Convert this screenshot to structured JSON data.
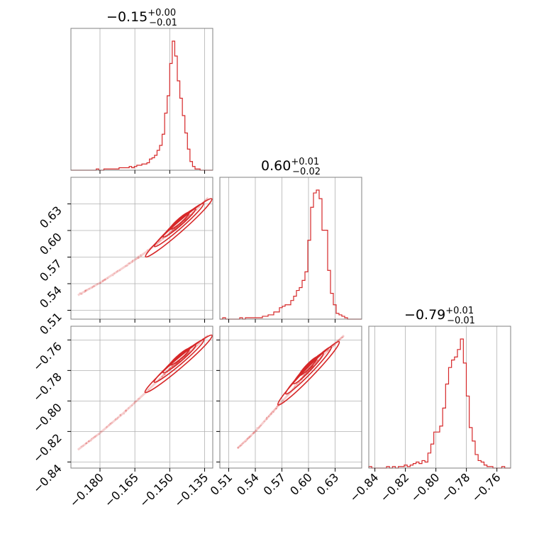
{
  "chart_data": {
    "type": "corner",
    "color": "#d62728",
    "parameters": [
      {
        "title_value": "−0.15",
        "title_plus": "+0.00",
        "title_minus": "−0.01",
        "range": [
          -0.1925,
          -0.1315
        ],
        "ticks": [
          -0.18,
          -0.165,
          -0.15,
          -0.135
        ],
        "tick_labels": [
          "−0.180",
          "−0.165",
          "−0.150",
          "−0.135"
        ],
        "histogram": {
          "bin_edges_range": [
            -0.1925,
            -0.1315
          ],
          "counts": [
            0,
            0,
            0,
            0,
            0,
            0,
            0,
            0,
            0,
            0,
            1,
            0,
            0,
            1,
            1,
            1,
            1,
            1,
            1,
            2,
            2,
            2,
            2,
            3,
            2,
            3,
            4,
            4,
            5,
            5,
            6,
            9,
            10,
            12,
            16,
            20,
            29,
            46,
            60,
            86,
            104,
            92,
            72,
            58,
            44,
            30,
            17,
            7,
            3,
            1,
            1,
            0,
            0,
            0,
            0,
            0
          ]
        }
      },
      {
        "title_value": "0.60",
        "title_plus": "+0.01",
        "title_minus": "−0.02",
        "range": [
          0.5,
          0.66
        ],
        "ticks": [
          0.51,
          0.54,
          0.57,
          0.6,
          0.63
        ],
        "tick_labels": [
          "0.51",
          "0.54",
          "0.57",
          "0.60",
          "0.63"
        ],
        "histogram": {
          "bin_edges_range": [
            0.5,
            0.66
          ],
          "counts": [
            0,
            1,
            0,
            0,
            0,
            0,
            0,
            1,
            0,
            1,
            1,
            1,
            1,
            1,
            1,
            2,
            2,
            3,
            3,
            5,
            5,
            8,
            9,
            10,
            10,
            13,
            16,
            20,
            22,
            27,
            33,
            55,
            78,
            88,
            90,
            84,
            62,
            62,
            34,
            18,
            10,
            4,
            3,
            2,
            1,
            0,
            0,
            0,
            0,
            0
          ]
        }
      },
      {
        "title_value": "−0.79",
        "title_plus": "+0.01",
        "title_minus": "−0.01",
        "range": [
          -0.844,
          -0.751
        ],
        "ticks": [
          -0.84,
          -0.82,
          -0.8,
          -0.78,
          -0.76
        ],
        "tick_labels": [
          "−0.84",
          "−0.82",
          "−0.80",
          "−0.78",
          "−0.76"
        ],
        "histogram": {
          "bin_edges_range": [
            -0.844,
            -0.751
          ],
          "counts": [
            1,
            0,
            0,
            0,
            0,
            0,
            1,
            0,
            1,
            0,
            1,
            1,
            2,
            1,
            2,
            3,
            4,
            3,
            5,
            4,
            10,
            16,
            24,
            24,
            28,
            40,
            56,
            67,
            72,
            74,
            79,
            86,
            70,
            48,
            27,
            18,
            9,
            5,
            4,
            2,
            1,
            1,
            0,
            0,
            0,
            1,
            0,
            0
          ]
        }
      }
    ],
    "scatter_pairs": [
      {
        "x_param": 0,
        "y_param": 1
      },
      {
        "x_param": 0,
        "y_param": 2
      },
      {
        "x_param": 1,
        "y_param": 2
      }
    ],
    "relation": {
      "p0_to_p1": [
        [
          -0.1895,
          0.527
        ],
        [
          -0.18,
          0.541
        ],
        [
          -0.17,
          0.558
        ],
        [
          -0.16,
          0.576
        ],
        [
          -0.15,
          0.597
        ],
        [
          -0.14,
          0.62
        ],
        [
          -0.1335,
          0.637
        ]
      ],
      "p0_to_p2": [
        [
          -0.1895,
          -0.832
        ],
        [
          -0.18,
          -0.821
        ],
        [
          -0.17,
          -0.808
        ],
        [
          -0.16,
          -0.794
        ],
        [
          -0.15,
          -0.779
        ],
        [
          -0.14,
          -0.766
        ],
        [
          -0.1335,
          -0.757
        ]
      ],
      "p1_to_p2": [
        [
          0.52,
          -0.831
        ],
        [
          0.54,
          -0.82
        ],
        [
          0.56,
          -0.807
        ],
        [
          0.58,
          -0.794
        ],
        [
          0.6,
          -0.78
        ],
        [
          0.62,
          -0.768
        ],
        [
          0.64,
          -0.757
        ]
      ]
    },
    "grid": true
  }
}
